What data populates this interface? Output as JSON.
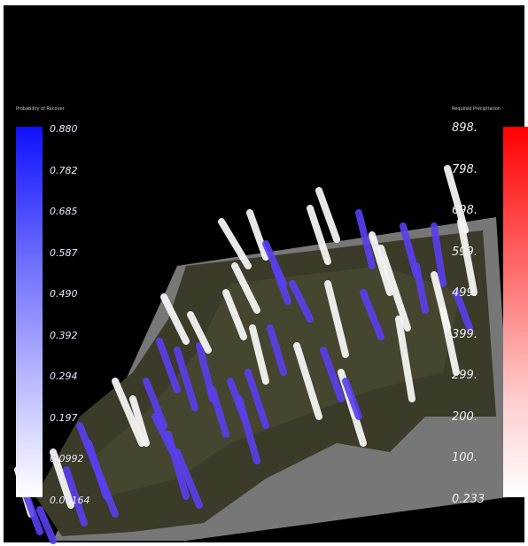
{
  "legend_left": {
    "title": "Probability of Recover",
    "ticks": [
      "0.880",
      "0.782",
      "0.685",
      "0.587",
      "0.490",
      "0.392",
      "0.294",
      "0.197",
      "0.0992",
      "0.00164"
    ],
    "color_top": "#1010ff",
    "color_bottom": "#ffffff"
  },
  "legend_right": {
    "title": "Required Precipitation",
    "ticks": [
      "898.",
      "798.",
      "698.",
      "599.",
      "499.",
      "399.",
      "299.",
      "200.",
      "100.",
      "0.233"
    ],
    "color_top": "#ff0000",
    "color_bottom": "#ffffff"
  },
  "colors": {
    "background": "#000000",
    "plane": "#8a8a8a",
    "terrain": "#3a3a2a",
    "bar_blue": "#5a3ff0",
    "bar_white": "#f4f4f4"
  }
}
